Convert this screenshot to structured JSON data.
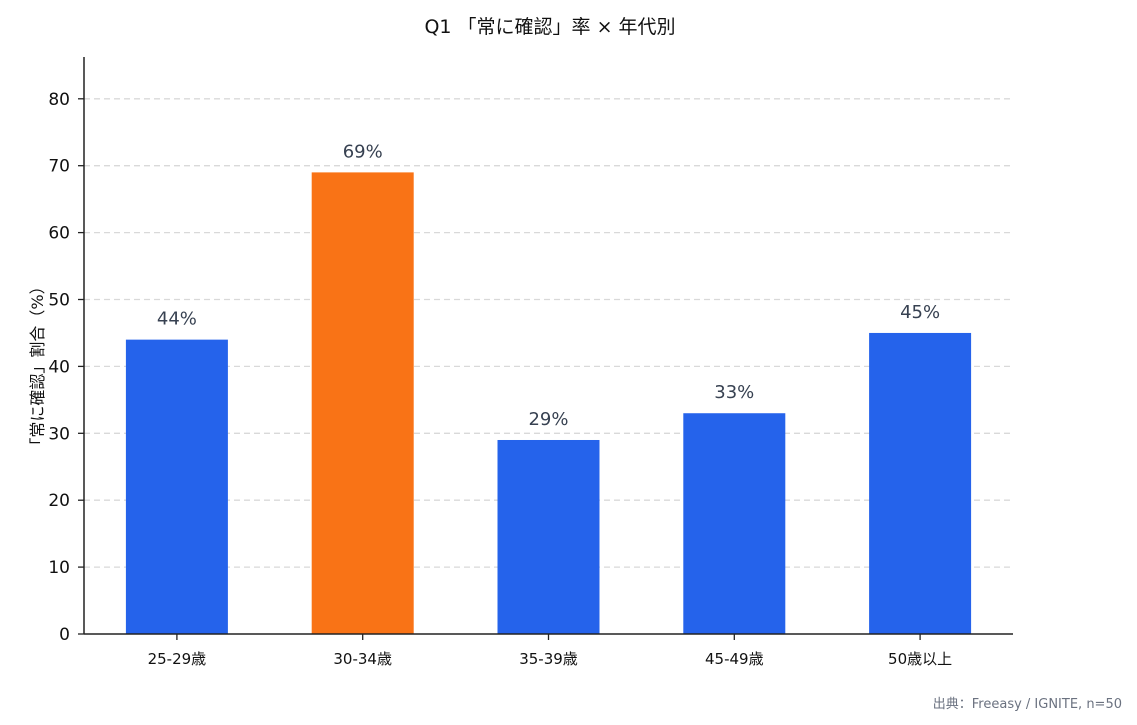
{
  "title": "Q1 「常に確認」率 × 年代別",
  "source": "出典：Freeasy / IGNITE, n=50",
  "colors": {
    "default_bar": "#2563EB",
    "highlight_bar": "#F97316",
    "grid": "#d9d9d9",
    "value_label": "#374151"
  },
  "chart_data": {
    "type": "bar",
    "title": "Q1 「常に確認」率 × 年代別",
    "xlabel": "",
    "ylabel": "「常に確認」割合（%）",
    "categories": [
      "25-29歳",
      "30-34歳",
      "35-39歳",
      "45-49歳",
      "50歳以上"
    ],
    "values": [
      44,
      69,
      29,
      33,
      45
    ],
    "value_labels": [
      "44%",
      "69%",
      "29%",
      "33%",
      "45%"
    ],
    "highlight_index": 1,
    "ylim": [
      0,
      86
    ],
    "yticks": [
      0,
      10,
      20,
      30,
      40,
      50,
      60,
      70,
      80
    ],
    "grid": "horizontal dashed",
    "legend": null
  }
}
